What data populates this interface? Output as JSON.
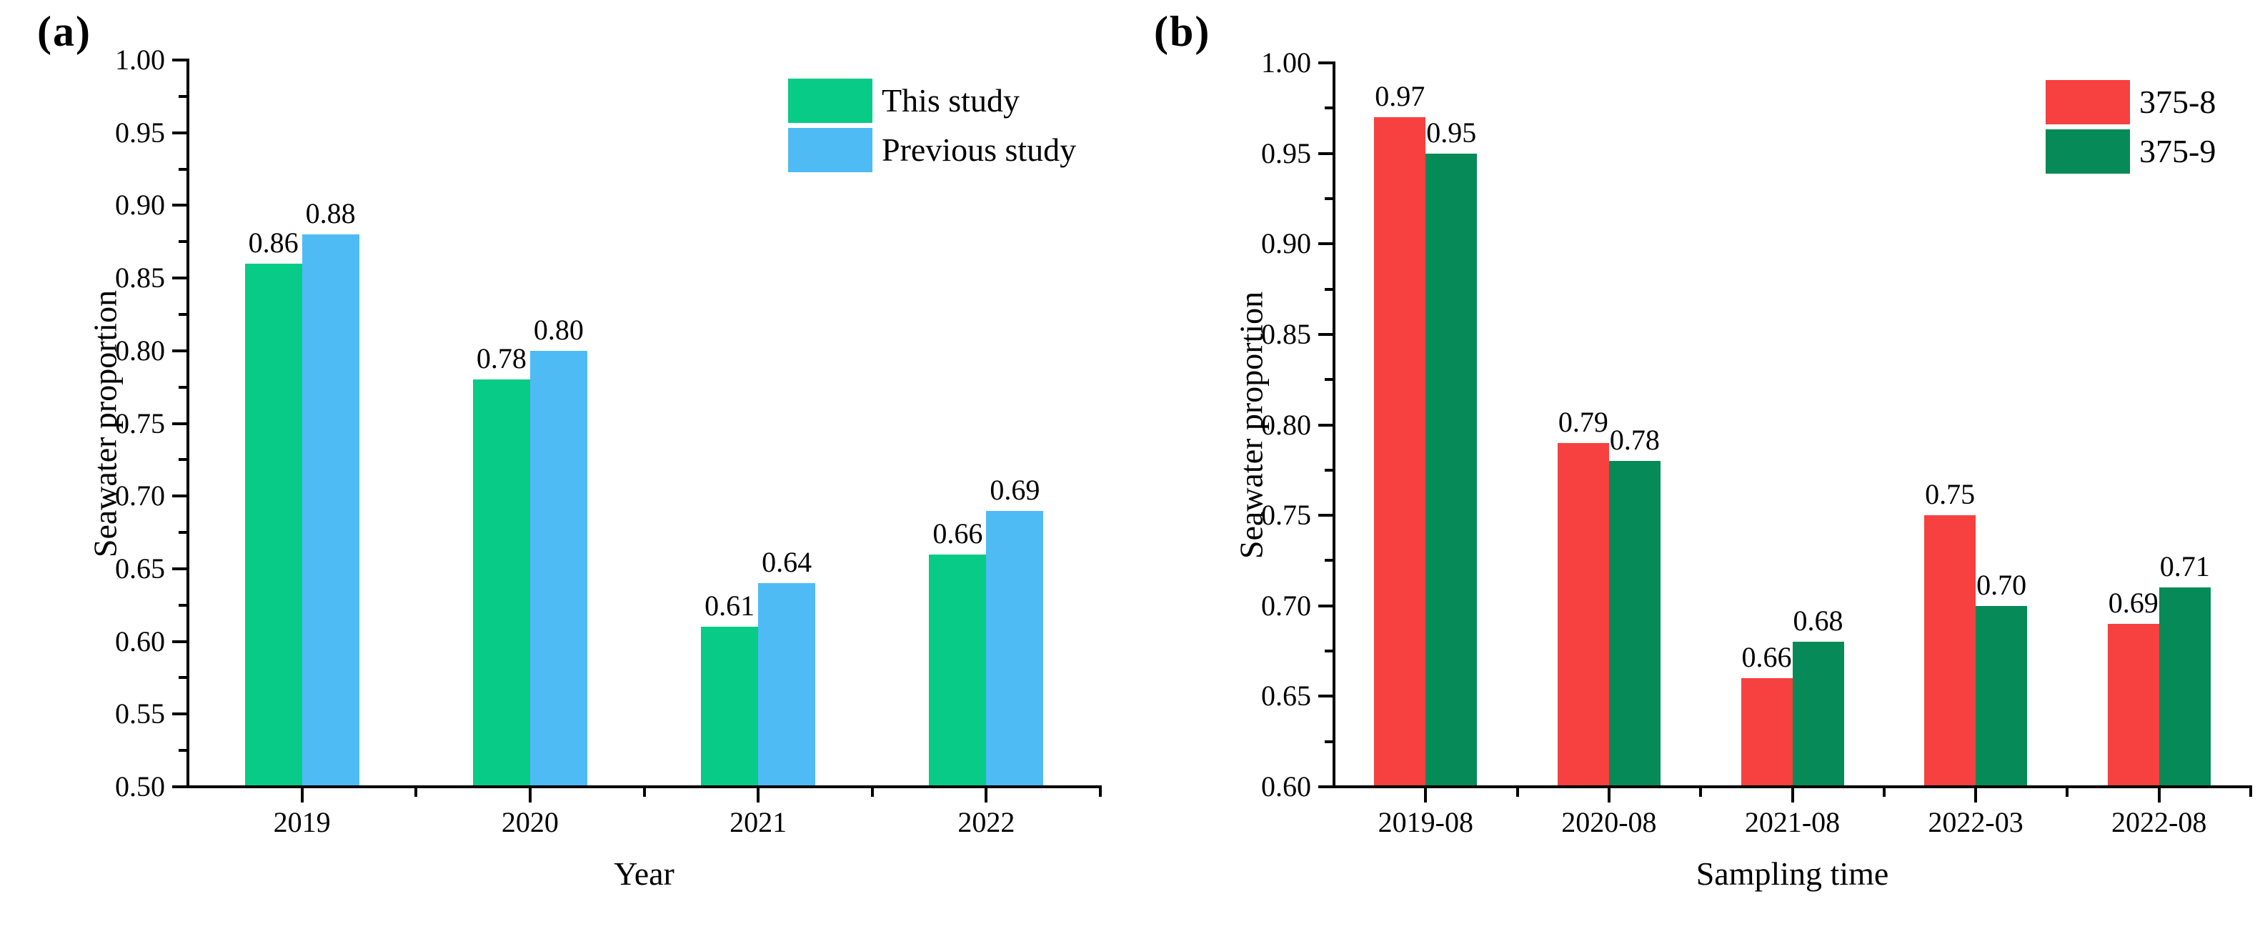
{
  "figure": {
    "background": "#ffffff",
    "text_color": "#000000",
    "axis_color": "#000000"
  },
  "chart_data": [
    {
      "type": "bar",
      "panel_label": "(a)",
      "categories": [
        "2019",
        "2020",
        "2021",
        "2022"
      ],
      "series": [
        {
          "name": "This study",
          "color": "#07cb86",
          "values": [
            0.86,
            0.78,
            0.61,
            0.66
          ]
        },
        {
          "name": "Previous study",
          "color": "#4fbbf5",
          "values": [
            0.88,
            0.8,
            0.64,
            0.69
          ]
        }
      ],
      "xlabel": "Year",
      "ylabel": "Seawater proportion",
      "ylim": [
        0.5,
        1.0
      ],
      "ytick_step": 0.05,
      "yminor_step": 0.025,
      "ytick_labels": [
        "0.50",
        "0.55",
        "0.60",
        "0.65",
        "0.70",
        "0.75",
        "0.80",
        "0.85",
        "0.90",
        "0.95",
        "1.00"
      ],
      "value_labels": [
        "0.86",
        "0.88",
        "0.78",
        "0.80",
        "0.61",
        "0.64",
        "0.66",
        "0.69"
      ],
      "grid": false,
      "legend_position": "top-right",
      "legend_entries": [
        "This study",
        "Previous study"
      ]
    },
    {
      "type": "bar",
      "panel_label": "(b)",
      "categories": [
        "2019-08",
        "2020-08",
        "2021-08",
        "2022-03",
        "2022-08"
      ],
      "series": [
        {
          "name": "375-8",
          "color": "#f74040",
          "values": [
            0.97,
            0.79,
            0.66,
            0.75,
            0.69
          ]
        },
        {
          "name": "375-9",
          "color": "#058a58",
          "values": [
            0.95,
            0.78,
            0.68,
            0.7,
            0.71
          ]
        }
      ],
      "xlabel": "Sampling time",
      "ylabel": "Seawater proportion",
      "ylim": [
        0.6,
        1.0
      ],
      "ytick_step": 0.05,
      "yminor_step": 0.025,
      "ytick_labels": [
        "0.60",
        "0.65",
        "0.70",
        "0.75",
        "0.80",
        "0.85",
        "0.90",
        "0.95",
        "1.00"
      ],
      "value_labels": [
        "0.97",
        "0.95",
        "0.79",
        "0.78",
        "0.66",
        "0.68",
        "0.75",
        "0.70",
        "0.69",
        "0.71"
      ],
      "grid": false,
      "legend_position": "top-right",
      "legend_entries": [
        "375-8",
        "375-9"
      ]
    }
  ]
}
